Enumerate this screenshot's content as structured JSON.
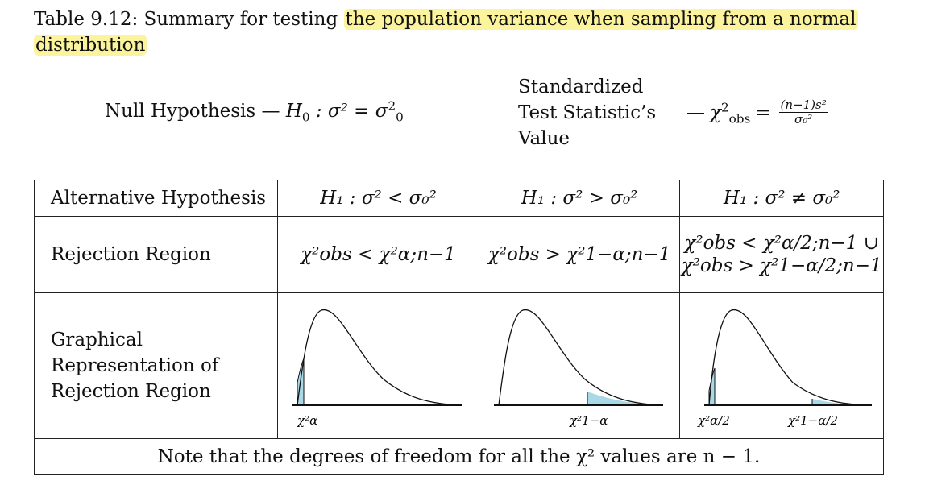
{
  "caption": {
    "prefix": "Table 9.12: Summary for testing",
    "highlight_line1": "the population variance when sampling from a normal",
    "highlight_line2": "distribution",
    "highlight_color": "#fbf49c"
  },
  "null_hypothesis": {
    "label": "Null Hypothesis —",
    "H": "H",
    "sub0": "0",
    "rest": ": σ² = σ",
    "sigma_sup": "2",
    "sigma_sub": "0"
  },
  "test_statistic": {
    "label_line1": "Standardized",
    "label_line2": "Test Statistic’s",
    "label_line3": "Value",
    "dash": "—",
    "chi": "χ",
    "chi_sup": "2",
    "chi_sub": "obs",
    "equals": "=",
    "numerator": "(n−1)s²",
    "denominator": "σ₀²"
  },
  "table": {
    "headers": {
      "row_label": "Alternative Hypothesis",
      "left": "H₁ : σ² < σ₀²",
      "right": "H₁ : σ² > σ₀²",
      "two": "H₁ : σ² ≠ σ₀²"
    },
    "rejection": {
      "row_label": "Rejection Region",
      "left": "χ²obs < χ²α;n−1",
      "right": "χ²obs > χ²1−α;n−1",
      "two_line1": "χ²obs < χ²α/2;n−1 ∪",
      "two_line2": "χ²obs > χ²1−α/2;n−1"
    },
    "graph": {
      "row_label_line1": "Graphical",
      "row_label_line2": "Representation of",
      "row_label_line3": "Rejection Region",
      "left_label": "χ²α",
      "right_label": "χ²1−α",
      "two_label_left": "χ²α/2",
      "two_label_right": "χ²1−α/2",
      "shade_color": "#a9d8e6"
    },
    "note": "Note that the degrees of freedom for all the χ² values are n − 1."
  }
}
